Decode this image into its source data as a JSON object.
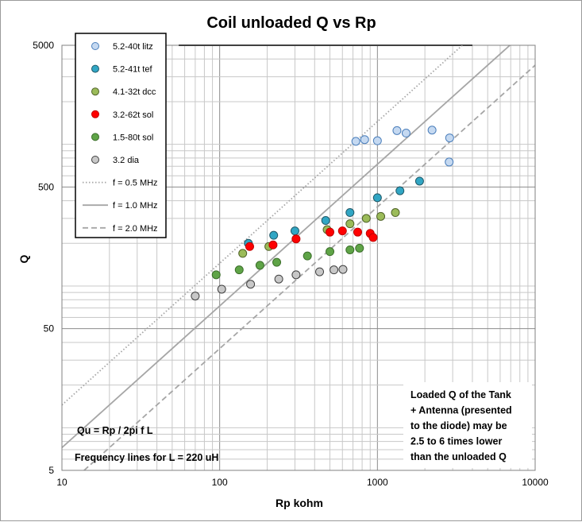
{
  "chart_data": {
    "type": "scatter",
    "title": "Coil unloaded Q vs Rp",
    "xlabel": "Rp kohm",
    "ylabel": "Q",
    "xscale": "log",
    "yscale": "log",
    "xlim": [
      10,
      10000
    ],
    "ylim": [
      5,
      5000
    ],
    "x_ticks": [
      "10",
      "100",
      "1000",
      "10000"
    ],
    "y_ticks": [
      "5",
      "50",
      "500",
      "5000"
    ],
    "grid": true,
    "legend_position": "top-left",
    "series": [
      {
        "name": "5.2-40t litz",
        "color": "#c5d9f1",
        "edge": "#4a7ebb",
        "points": [
          [
            730,
            1050
          ],
          [
            830,
            1080
          ],
          [
            1000,
            1060
          ],
          [
            1330,
            1250
          ],
          [
            1520,
            1200
          ],
          [
            2220,
            1260
          ],
          [
            2870,
            1110
          ],
          [
            2850,
            750
          ]
        ]
      },
      {
        "name": "5.2-41t tef",
        "color": "#31a6c4",
        "edge": "#205867",
        "points": [
          [
            152,
            200
          ],
          [
            220,
            228
          ],
          [
            300,
            245
          ],
          [
            470,
            290
          ],
          [
            670,
            330
          ],
          [
            1000,
            420
          ],
          [
            1390,
            470
          ],
          [
            1850,
            550
          ]
        ]
      },
      {
        "name": "4.1-32t dcc",
        "color": "#9bbb59",
        "edge": "#4f6228",
        "points": [
          [
            140,
            170
          ],
          [
            205,
            190
          ],
          [
            480,
            250
          ],
          [
            670,
            275
          ],
          [
            850,
            300
          ],
          [
            1050,
            310
          ],
          [
            1300,
            330
          ]
        ]
      },
      {
        "name": "3.2-62t sol",
        "color": "#ff0000",
        "edge": "#c00000",
        "points": [
          [
            155,
            190
          ],
          [
            218,
            195
          ],
          [
            305,
            215
          ],
          [
            500,
            240
          ],
          [
            600,
            245
          ],
          [
            750,
            240
          ],
          [
            900,
            235
          ],
          [
            940,
            220
          ]
        ]
      },
      {
        "name": "1.5-80t sol",
        "color": "#5fa447",
        "edge": "#3b6e2a",
        "points": [
          [
            95,
            120
          ],
          [
            133,
            130
          ],
          [
            180,
            140
          ],
          [
            230,
            147
          ],
          [
            360,
            163
          ],
          [
            500,
            175
          ],
          [
            670,
            180
          ],
          [
            770,
            185
          ]
        ]
      },
      {
        "name": "3.2 dia",
        "color": "#c8c8c8",
        "edge": "#404040",
        "points": [
          [
            70,
            85
          ],
          [
            103,
            95
          ],
          [
            157,
            103
          ],
          [
            237,
            112
          ],
          [
            305,
            120
          ],
          [
            430,
            126
          ],
          [
            530,
            130
          ],
          [
            605,
            131
          ]
        ]
      },
      {
        "name": "f = 0.5 MHz",
        "line": "dotted",
        "freq_mhz": 0.5
      },
      {
        "name": "f = 1.0 MHz",
        "line": "solid",
        "freq_mhz": 1.0
      },
      {
        "name": "f = 2.0 MHz",
        "line": "dashed",
        "freq_mhz": 2.0
      }
    ],
    "inductance_uH": 220,
    "annotations": {
      "formula": "Qu = Rp / 2pi f L",
      "frequency_note": "Frequency lines for L = 220 uH",
      "loaded_note": [
        "Loaded Q of the Tank",
        "+ Antenna (presented",
        "to the diode) may be",
        "2.5 to 6 times lower",
        "than the unloaded Q"
      ]
    }
  }
}
